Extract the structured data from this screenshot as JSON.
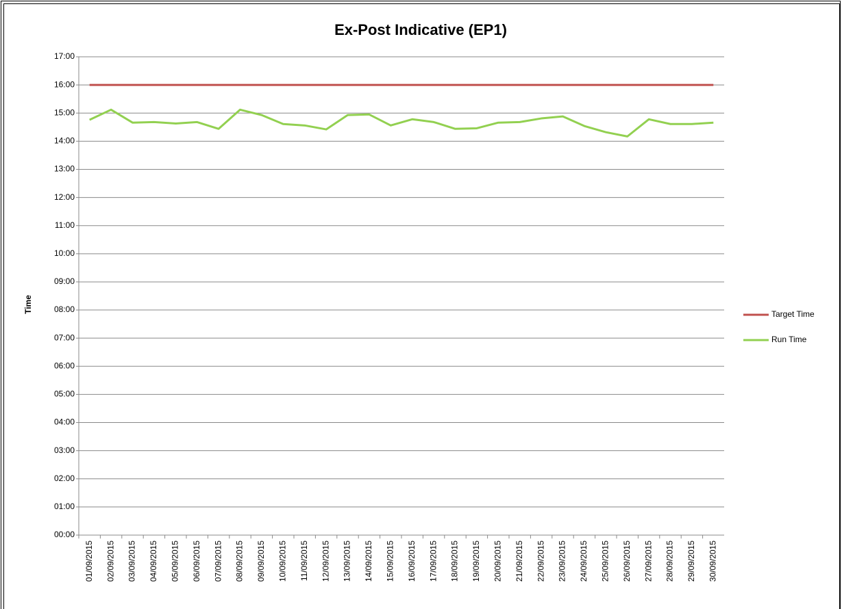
{
  "chart_data": {
    "type": "line",
    "title": "Ex-Post Indicative (EP1)",
    "y_label": "Time",
    "categories": [
      "01/09/2015",
      "02/09/2015",
      "03/09/2015",
      "04/09/2015",
      "05/09/2015",
      "06/09/2015",
      "07/09/2015",
      "08/09/2015",
      "09/09/2015",
      "10/09/2015",
      "11/09/2015",
      "12/09/2015",
      "13/09/2015",
      "14/09/2015",
      "15/09/2015",
      "16/09/2015",
      "17/09/2015",
      "18/09/2015",
      "19/09/2015",
      "20/09/2015",
      "21/09/2015",
      "22/09/2015",
      "23/09/2015",
      "24/09/2015",
      "25/09/2015",
      "26/09/2015",
      "27/09/2015",
      "28/09/2015",
      "29/09/2015",
      "30/09/2015"
    ],
    "series": [
      {
        "name": "Target Time",
        "color": "#c0504d",
        "values": [
          16,
          16,
          16,
          16,
          16,
          16,
          16,
          16,
          16,
          16,
          16,
          16,
          16,
          16,
          16,
          16,
          16,
          16,
          16,
          16,
          16,
          16,
          16,
          16,
          16,
          16,
          16,
          16,
          16,
          16
        ]
      },
      {
        "name": "Run Time",
        "color": "#92d050",
        "values": [
          14.76,
          15.12,
          14.66,
          14.68,
          14.63,
          14.68,
          14.44,
          15.12,
          14.93,
          14.61,
          14.56,
          14.42,
          14.93,
          14.95,
          14.56,
          14.78,
          14.68,
          14.44,
          14.46,
          14.66,
          14.68,
          14.81,
          14.88,
          14.54,
          14.32,
          14.17,
          14.78,
          14.61,
          14.61,
          14.66
        ]
      }
    ],
    "ylim": [
      0,
      17
    ],
    "yticks": [
      {
        "value": 0,
        "label": "00:00"
      },
      {
        "value": 1,
        "label": "01:00"
      },
      {
        "value": 2,
        "label": "02:00"
      },
      {
        "value": 3,
        "label": "03:00"
      },
      {
        "value": 4,
        "label": "04:00"
      },
      {
        "value": 5,
        "label": "05:00"
      },
      {
        "value": 6,
        "label": "06:00"
      },
      {
        "value": 7,
        "label": "07:00"
      },
      {
        "value": 8,
        "label": "08:00"
      },
      {
        "value": 9,
        "label": "09:00"
      },
      {
        "value": 10,
        "label": "10:00"
      },
      {
        "value": 11,
        "label": "11:00"
      },
      {
        "value": 12,
        "label": "12:00"
      },
      {
        "value": 13,
        "label": "13:00"
      },
      {
        "value": 14,
        "label": "14:00"
      },
      {
        "value": 15,
        "label": "15:00"
      },
      {
        "value": 16,
        "label": "16:00"
      },
      {
        "value": 17,
        "label": "17:00"
      }
    ],
    "grid": true,
    "legend": "right"
  }
}
